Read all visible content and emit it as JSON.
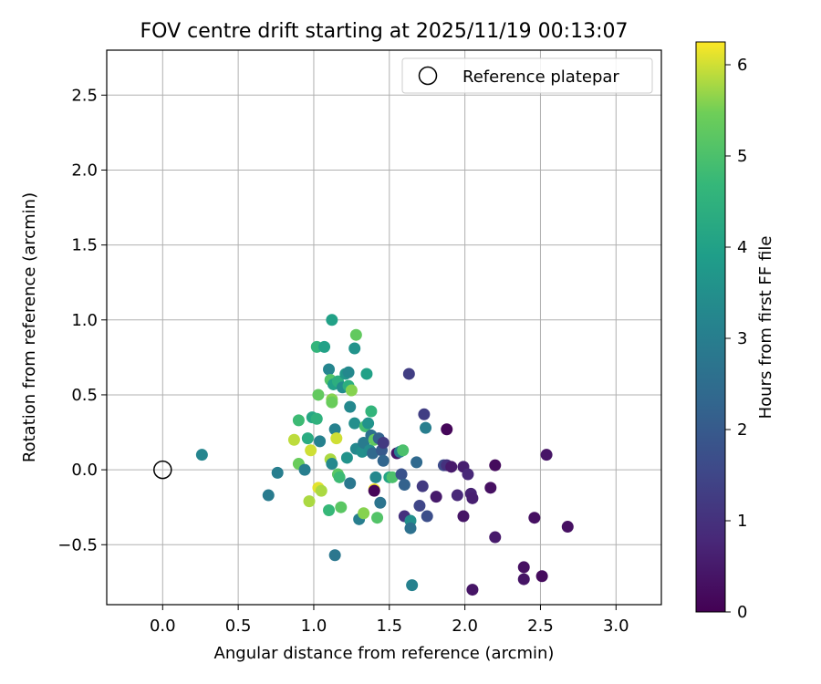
{
  "chart_data": {
    "type": "scatter",
    "title": "FOV centre drift starting at 2025/11/19 00:13:07",
    "xlabel": "Angular distance from reference (arcmin)",
    "ylabel": "Rotation from reference (arcmin)",
    "xlim": [
      -0.37,
      3.3
    ],
    "ylim": [
      -0.9,
      2.8
    ],
    "xticks": [
      0.0,
      0.5,
      1.0,
      1.5,
      2.0,
      2.5,
      3.0
    ],
    "xtick_labels": [
      "0.0",
      "0.5",
      "1.0",
      "1.5",
      "2.0",
      "2.5",
      "3.0"
    ],
    "yticks": [
      -0.5,
      0.0,
      0.5,
      1.0,
      1.5,
      2.0,
      2.5
    ],
    "ytick_labels": [
      "−0.5",
      "0.0",
      "0.5",
      "1.0",
      "1.5",
      "2.0",
      "2.5"
    ],
    "grid": true,
    "legend": {
      "position": "top-right",
      "label": "Reference platepar"
    },
    "reference_point": {
      "x": 0.0,
      "y": 0.0
    },
    "colorbar": {
      "label": "Hours from first FF file",
      "min": 0,
      "max": 6.25,
      "ticks": [
        0,
        1,
        2,
        3,
        4,
        5,
        6
      ],
      "tick_labels": [
        "0",
        "1",
        "2",
        "3",
        "4",
        "5",
        "6"
      ],
      "colormap": "viridis"
    },
    "points": [
      {
        "x": 0.26,
        "y": 0.1,
        "c": 3.2
      },
      {
        "x": 0.7,
        "y": -0.17,
        "c": 2.9
      },
      {
        "x": 0.76,
        "y": -0.02,
        "c": 3.0
      },
      {
        "x": 0.87,
        "y": 0.2,
        "c": 5.9
      },
      {
        "x": 0.9,
        "y": 0.33,
        "c": 4.8
      },
      {
        "x": 0.9,
        "y": 0.04,
        "c": 5.4
      },
      {
        "x": 0.94,
        "y": 0.0,
        "c": 3.0
      },
      {
        "x": 0.96,
        "y": 0.21,
        "c": 4.3
      },
      {
        "x": 0.97,
        "y": -0.21,
        "c": 5.8
      },
      {
        "x": 0.99,
        "y": 0.35,
        "c": 4.2
      },
      {
        "x": 0.98,
        "y": 0.13,
        "c": 6.0
      },
      {
        "x": 1.02,
        "y": 0.82,
        "c": 4.6
      },
      {
        "x": 1.02,
        "y": 0.34,
        "c": 4.5
      },
      {
        "x": 1.03,
        "y": 0.5,
        "c": 5.3
      },
      {
        "x": 1.04,
        "y": 0.19,
        "c": 3.1
      },
      {
        "x": 1.03,
        "y": -0.12,
        "c": 6.1
      },
      {
        "x": 1.05,
        "y": -0.14,
        "c": 5.8
      },
      {
        "x": 1.07,
        "y": 0.82,
        "c": 4.0
      },
      {
        "x": 1.1,
        "y": 0.67,
        "c": 3.2
      },
      {
        "x": 1.11,
        "y": 0.6,
        "c": 5.1
      },
      {
        "x": 1.12,
        "y": 0.47,
        "c": 5.6
      },
      {
        "x": 1.12,
        "y": 0.45,
        "c": 5.4
      },
      {
        "x": 1.12,
        "y": 1.0,
        "c": 4.0
      },
      {
        "x": 1.13,
        "y": 0.57,
        "c": 4.0
      },
      {
        "x": 1.14,
        "y": 0.27,
        "c": 3.1
      },
      {
        "x": 1.11,
        "y": 0.07,
        "c": 5.8
      },
      {
        "x": 1.12,
        "y": 0.04,
        "c": 3.3
      },
      {
        "x": 1.15,
        "y": 0.21,
        "c": 6.0
      },
      {
        "x": 1.16,
        "y": 0.59,
        "c": 4.4
      },
      {
        "x": 1.16,
        "y": -0.03,
        "c": 5.2
      },
      {
        "x": 1.17,
        "y": -0.05,
        "c": 4.8
      },
      {
        "x": 1.1,
        "y": -0.27,
        "c": 4.7
      },
      {
        "x": 1.18,
        "y": -0.25,
        "c": 5.2
      },
      {
        "x": 1.14,
        "y": -0.57,
        "c": 2.8
      },
      {
        "x": 1.19,
        "y": 0.55,
        "c": 3.4
      },
      {
        "x": 1.21,
        "y": 0.64,
        "c": 3.7
      },
      {
        "x": 1.23,
        "y": 0.65,
        "c": 3.3
      },
      {
        "x": 1.23,
        "y": 0.56,
        "c": 4.4
      },
      {
        "x": 1.24,
        "y": 0.42,
        "c": 3.3
      },
      {
        "x": 1.25,
        "y": 0.53,
        "c": 5.6
      },
      {
        "x": 1.22,
        "y": 0.08,
        "c": 3.6
      },
      {
        "x": 1.24,
        "y": -0.09,
        "c": 2.8
      },
      {
        "x": 1.27,
        "y": 0.81,
        "c": 3.6
      },
      {
        "x": 1.28,
        "y": 0.9,
        "c": 5.3
      },
      {
        "x": 1.27,
        "y": 0.31,
        "c": 3.5
      },
      {
        "x": 1.28,
        "y": 0.14,
        "c": 3.3
      },
      {
        "x": 1.3,
        "y": -0.33,
        "c": 3.0
      },
      {
        "x": 1.33,
        "y": -0.29,
        "c": 5.6
      },
      {
        "x": 1.32,
        "y": 0.12,
        "c": 3.5
      },
      {
        "x": 1.33,
        "y": 0.18,
        "c": 2.9
      },
      {
        "x": 1.34,
        "y": 0.29,
        "c": 4.9
      },
      {
        "x": 1.35,
        "y": 0.64,
        "c": 4.0
      },
      {
        "x": 1.36,
        "y": 0.31,
        "c": 3.6
      },
      {
        "x": 1.37,
        "y": 0.13,
        "c": 3.4
      },
      {
        "x": 1.38,
        "y": 0.39,
        "c": 4.6
      },
      {
        "x": 1.38,
        "y": 0.23,
        "c": 2.6
      },
      {
        "x": 1.39,
        "y": 0.11,
        "c": 2.4
      },
      {
        "x": 1.4,
        "y": 0.2,
        "c": 5.3
      },
      {
        "x": 1.4,
        "y": -0.13,
        "c": 6.2
      },
      {
        "x": 1.4,
        "y": -0.14,
        "c": 0.1
      },
      {
        "x": 1.41,
        "y": -0.05,
        "c": 3.3
      },
      {
        "x": 1.42,
        "y": -0.32,
        "c": 5.1
      },
      {
        "x": 1.43,
        "y": 0.21,
        "c": 2.2
      },
      {
        "x": 1.44,
        "y": -0.22,
        "c": 2.7
      },
      {
        "x": 1.45,
        "y": 0.13,
        "c": 2.0
      },
      {
        "x": 1.46,
        "y": 0.18,
        "c": 1.2
      },
      {
        "x": 1.46,
        "y": 0.06,
        "c": 2.3
      },
      {
        "x": 1.5,
        "y": -0.05,
        "c": 4.1
      },
      {
        "x": 1.52,
        "y": -0.05,
        "c": 5.0
      },
      {
        "x": 1.55,
        "y": 0.11,
        "c": 0.4
      },
      {
        "x": 1.57,
        "y": 0.12,
        "c": 3.0
      },
      {
        "x": 1.58,
        "y": -0.03,
        "c": 1.8
      },
      {
        "x": 1.59,
        "y": 0.13,
        "c": 5.0
      },
      {
        "x": 1.6,
        "y": -0.31,
        "c": 1.0
      },
      {
        "x": 1.6,
        "y": -0.1,
        "c": 2.2
      },
      {
        "x": 1.63,
        "y": 0.64,
        "c": 1.3
      },
      {
        "x": 1.64,
        "y": -0.34,
        "c": 3.5
      },
      {
        "x": 1.64,
        "y": -0.39,
        "c": 2.6
      },
      {
        "x": 1.65,
        "y": -0.77,
        "c": 3.1
      },
      {
        "x": 1.68,
        "y": 0.05,
        "c": 2.4
      },
      {
        "x": 1.7,
        "y": -0.24,
        "c": 1.5
      },
      {
        "x": 1.72,
        "y": -0.11,
        "c": 1.2
      },
      {
        "x": 1.73,
        "y": 0.37,
        "c": 1.3
      },
      {
        "x": 1.74,
        "y": 0.28,
        "c": 3.0
      },
      {
        "x": 1.75,
        "y": -0.31,
        "c": 1.7
      },
      {
        "x": 1.81,
        "y": -0.18,
        "c": 0.5
      },
      {
        "x": 1.86,
        "y": 0.03,
        "c": 1.6
      },
      {
        "x": 1.88,
        "y": 0.27,
        "c": 0.1
      },
      {
        "x": 1.88,
        "y": 0.03,
        "c": 1.0
      },
      {
        "x": 1.91,
        "y": 0.02,
        "c": 0.5
      },
      {
        "x": 1.95,
        "y": -0.17,
        "c": 0.8
      },
      {
        "x": 1.99,
        "y": 0.02,
        "c": 0.6
      },
      {
        "x": 1.99,
        "y": -0.31,
        "c": 0.4
      },
      {
        "x": 2.02,
        "y": -0.03,
        "c": 0.8
      },
      {
        "x": 2.04,
        "y": -0.16,
        "c": 0.7
      },
      {
        "x": 2.05,
        "y": -0.19,
        "c": 0.6
      },
      {
        "x": 2.05,
        "y": -0.8,
        "c": 0.4
      },
      {
        "x": 2.17,
        "y": -0.12,
        "c": 0.3
      },
      {
        "x": 2.2,
        "y": 0.03,
        "c": 0.2
      },
      {
        "x": 2.2,
        "y": -0.45,
        "c": 0.5
      },
      {
        "x": 2.39,
        "y": -0.65,
        "c": 0.3
      },
      {
        "x": 2.39,
        "y": -0.73,
        "c": 0.4
      },
      {
        "x": 2.46,
        "y": -0.32,
        "c": 0.3
      },
      {
        "x": 2.51,
        "y": -0.71,
        "c": 0.2
      },
      {
        "x": 2.54,
        "y": 0.1,
        "c": 0.4
      },
      {
        "x": 2.68,
        "y": -0.38,
        "c": 0.3
      }
    ]
  }
}
